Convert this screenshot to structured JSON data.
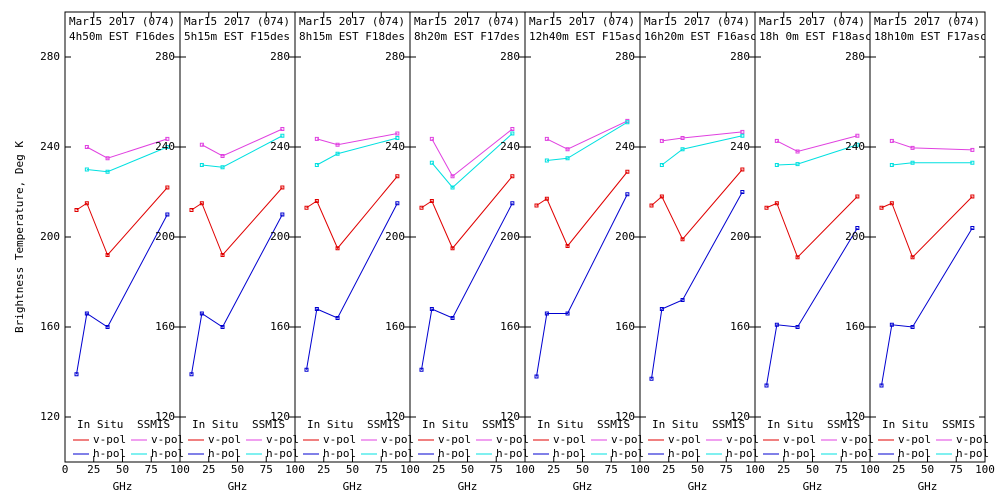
{
  "chart_data": [
    {
      "type": "line",
      "title": "Mar15 2017 (074)",
      "subtitle": "4h50m EST F16des",
      "xlabel": "GHz",
      "ylabel": "Brightness Temperature, Deg K",
      "xlim": [
        0,
        100
      ],
      "xticks": [
        0,
        25,
        50,
        75,
        100
      ],
      "ylim": [
        100,
        300
      ],
      "yticks": [
        120,
        160,
        200,
        240,
        280
      ],
      "legend_titles": [
        "In Situ",
        "SSMIS"
      ],
      "series": [
        {
          "name": "v-pol",
          "color": "#e00000",
          "x": [
            10,
            19,
            37,
            89
          ],
          "values": [
            212,
            215,
            192,
            222
          ]
        },
        {
          "name": "h-pol",
          "color": "#0000d0",
          "x": [
            10,
            19,
            37,
            89
          ],
          "values": [
            139,
            166,
            160,
            210
          ]
        },
        {
          "name": "v-pol",
          "color": "#e040e0",
          "x": [
            19,
            37,
            89
          ],
          "values": [
            240,
            235,
            243.6
          ]
        },
        {
          "name": "h-pol",
          "color": "#00e0e0",
          "x": [
            19,
            37,
            89
          ],
          "values": [
            230,
            229,
            240
          ]
        }
      ]
    },
    {
      "type": "line",
      "title": "Mar15 2017 (074)",
      "subtitle": "5h15m EST F15des",
      "xlabel": "GHz",
      "xlim": [
        0,
        100
      ],
      "xticks": [
        25,
        50,
        75,
        100
      ],
      "ylim": [
        100,
        300
      ],
      "yticks": [
        120,
        160,
        200,
        240,
        280
      ],
      "legend_titles": [
        "In Situ",
        "SSMIS"
      ],
      "series": [
        {
          "name": "v-pol",
          "color": "#e00000",
          "x": [
            10,
            19,
            37,
            89
          ],
          "values": [
            212,
            215,
            192,
            222
          ]
        },
        {
          "name": "h-pol",
          "color": "#0000d0",
          "x": [
            10,
            19,
            37,
            89
          ],
          "values": [
            139,
            166,
            160,
            210
          ]
        },
        {
          "name": "v-pol",
          "color": "#e040e0",
          "x": [
            19,
            37,
            89
          ],
          "values": [
            241,
            236,
            248
          ]
        },
        {
          "name": "h-pol",
          "color": "#00e0e0",
          "x": [
            19,
            37,
            89
          ],
          "values": [
            232,
            231,
            245
          ]
        }
      ]
    },
    {
      "type": "line",
      "title": "Mar15 2017 (074)",
      "subtitle": "8h15m EST F18des",
      "xlabel": "GHz",
      "xlim": [
        0,
        100
      ],
      "xticks": [
        25,
        50,
        75,
        100
      ],
      "ylim": [
        100,
        300
      ],
      "yticks": [
        120,
        160,
        200,
        240,
        280
      ],
      "legend_titles": [
        "In Situ",
        "SSMIS"
      ],
      "series": [
        {
          "name": "v-pol",
          "color": "#e00000",
          "x": [
            10,
            19,
            37,
            89
          ],
          "values": [
            213,
            216,
            195,
            227
          ]
        },
        {
          "name": "h-pol",
          "color": "#0000d0",
          "x": [
            10,
            19,
            37,
            89
          ],
          "values": [
            141,
            168,
            164,
            215
          ]
        },
        {
          "name": "v-pol",
          "color": "#e040e0",
          "x": [
            19,
            37,
            89
          ],
          "values": [
            243.6,
            241,
            246
          ]
        },
        {
          "name": "h-pol",
          "color": "#00e0e0",
          "x": [
            19,
            37,
            89
          ],
          "values": [
            232,
            237,
            244
          ]
        }
      ]
    },
    {
      "type": "line",
      "title": "Mar15 2017 (074)",
      "subtitle": "8h20m EST F17des",
      "xlabel": "GHz",
      "xlim": [
        0,
        100
      ],
      "xticks": [
        25,
        50,
        75,
        100
      ],
      "ylim": [
        100,
        300
      ],
      "yticks": [
        120,
        160,
        200,
        240,
        280
      ],
      "legend_titles": [
        "In Situ",
        "SSMIS"
      ],
      "series": [
        {
          "name": "v-pol",
          "color": "#e00000",
          "x": [
            10,
            19,
            37,
            89
          ],
          "values": [
            213,
            216,
            195,
            227
          ]
        },
        {
          "name": "h-pol",
          "color": "#0000d0",
          "x": [
            10,
            19,
            37,
            89
          ],
          "values": [
            141,
            168,
            164,
            215
          ]
        },
        {
          "name": "v-pol",
          "color": "#e040e0",
          "x": [
            19,
            37,
            89
          ],
          "values": [
            243.6,
            227,
            248
          ]
        },
        {
          "name": "h-pol",
          "color": "#00e0e0",
          "x": [
            19,
            37,
            89
          ],
          "values": [
            233,
            222,
            246
          ]
        }
      ]
    },
    {
      "type": "line",
      "title": "Mar15 2017 (074)",
      "subtitle": "12h40m EST F15asc",
      "xlabel": "GHz",
      "xlim": [
        0,
        100
      ],
      "xticks": [
        25,
        50,
        75,
        100
      ],
      "ylim": [
        100,
        300
      ],
      "yticks": [
        120,
        160,
        200,
        240,
        280
      ],
      "legend_titles": [
        "In Situ",
        "SSMIS"
      ],
      "series": [
        {
          "name": "v-pol",
          "color": "#e00000",
          "x": [
            10,
            19,
            37,
            89
          ],
          "values": [
            214,
            217,
            196,
            229
          ]
        },
        {
          "name": "h-pol",
          "color": "#0000d0",
          "x": [
            10,
            19,
            37,
            89
          ],
          "values": [
            138,
            166,
            166,
            219
          ]
        },
        {
          "name": "v-pol",
          "color": "#e040e0",
          "x": [
            19,
            37,
            89
          ],
          "values": [
            243.6,
            239,
            251.6
          ]
        },
        {
          "name": "h-pol",
          "color": "#00e0e0",
          "x": [
            19,
            37,
            89
          ],
          "values": [
            234,
            235,
            251
          ]
        }
      ]
    },
    {
      "type": "line",
      "title": "Mar15 2017 (074)",
      "subtitle": "16h20m EST F16asc",
      "xlabel": "GHz",
      "xlim": [
        0,
        100
      ],
      "xticks": [
        25,
        50,
        75,
        100
      ],
      "ylim": [
        100,
        300
      ],
      "yticks": [
        120,
        160,
        200,
        240,
        280
      ],
      "legend_titles": [
        "In Situ",
        "SSMIS"
      ],
      "series": [
        {
          "name": "v-pol",
          "color": "#e00000",
          "x": [
            10,
            19,
            37,
            89
          ],
          "values": [
            214,
            218,
            199,
            230
          ]
        },
        {
          "name": "h-pol",
          "color": "#0000d0",
          "x": [
            10,
            19,
            37,
            89
          ],
          "values": [
            137,
            168,
            172,
            220
          ]
        },
        {
          "name": "v-pol",
          "color": "#e040e0",
          "x": [
            19,
            37,
            89
          ],
          "values": [
            242.7,
            244,
            246.7
          ]
        },
        {
          "name": "h-pol",
          "color": "#00e0e0",
          "x": [
            19,
            37,
            89
          ],
          "values": [
            232,
            239,
            245
          ]
        }
      ]
    },
    {
      "type": "line",
      "title": "Mar15 2017 (074)",
      "subtitle": "18h 0m EST F18asc",
      "xlabel": "GHz",
      "xlim": [
        0,
        100
      ],
      "xticks": [
        25,
        50,
        75,
        100
      ],
      "ylim": [
        100,
        300
      ],
      "yticks": [
        120,
        160,
        200,
        240,
        280
      ],
      "legend_titles": [
        "In Situ",
        "SSMIS"
      ],
      "series": [
        {
          "name": "v-pol",
          "color": "#e00000",
          "x": [
            10,
            19,
            37,
            89
          ],
          "values": [
            213,
            215,
            191,
            218
          ]
        },
        {
          "name": "h-pol",
          "color": "#0000d0",
          "x": [
            10,
            19,
            37,
            89
          ],
          "values": [
            134,
            161,
            160,
            204
          ]
        },
        {
          "name": "v-pol",
          "color": "#e040e0",
          "x": [
            19,
            37,
            89
          ],
          "values": [
            242.7,
            238,
            245
          ]
        },
        {
          "name": "h-pol",
          "color": "#00e0e0",
          "x": [
            19,
            37,
            89
          ],
          "values": [
            232,
            232.4,
            241
          ]
        }
      ]
    },
    {
      "type": "line",
      "title": "Mar15 2017 (074)",
      "subtitle": "18h10m EST F17asc",
      "xlabel": "GHz",
      "xlim": [
        0,
        100
      ],
      "xticks": [
        25,
        50,
        75,
        100
      ],
      "ylim": [
        100,
        300
      ],
      "yticks": [
        120,
        160,
        200,
        240,
        280
      ],
      "legend_titles": [
        "In Situ",
        "SSMIS"
      ],
      "series": [
        {
          "name": "v-pol",
          "color": "#e00000",
          "x": [
            10,
            19,
            37,
            89
          ],
          "values": [
            213,
            215,
            191,
            218
          ]
        },
        {
          "name": "h-pol",
          "color": "#0000d0",
          "x": [
            10,
            19,
            37,
            89
          ],
          "values": [
            134,
            161,
            160,
            204
          ]
        },
        {
          "name": "v-pol",
          "color": "#e040e0",
          "x": [
            19,
            37,
            89
          ],
          "values": [
            242.7,
            239.6,
            238.7
          ]
        },
        {
          "name": "h-pol",
          "color": "#00e0e0",
          "x": [
            19,
            37,
            89
          ],
          "values": [
            232,
            233,
            233
          ]
        }
      ]
    }
  ]
}
